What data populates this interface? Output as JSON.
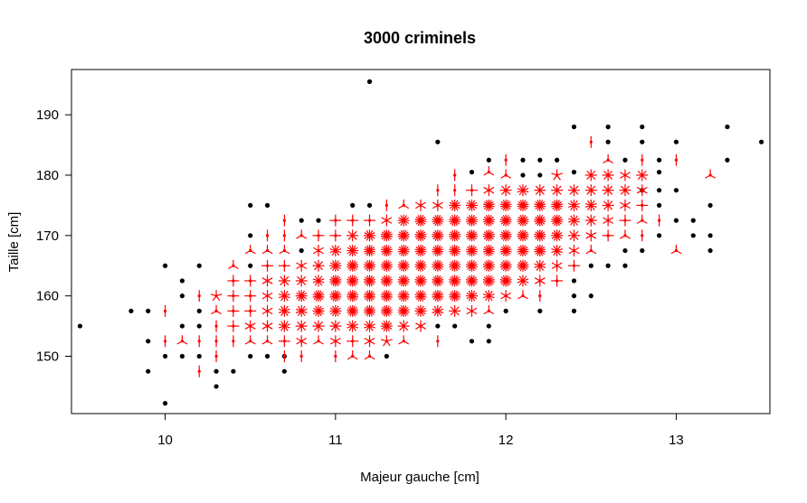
{
  "chart_data": {
    "type": "scatter",
    "title": "3000 criminels",
    "xlabel": "Majeur gauche [cm]",
    "ylabel": "Taille [cm]",
    "xlim": [
      9.45,
      13.55
    ],
    "ylim": [
      140.5,
      197.5
    ],
    "x_ticks": [
      "10",
      "11",
      "12",
      "13"
    ],
    "y_ticks": [
      "150",
      "160",
      "170",
      "180",
      "190"
    ],
    "colors": {
      "single": "#000000",
      "sunflower": "#ff0000",
      "frame": "#000000"
    },
    "legend": "none",
    "grid": false,
    "single_points": [
      [
        9.5,
        155.0
      ],
      [
        9.8,
        157.5
      ],
      [
        9.9,
        157.5
      ],
      [
        9.9,
        152.5
      ],
      [
        9.9,
        147.5
      ],
      [
        10.0,
        165.0
      ],
      [
        10.0,
        150.0
      ],
      [
        10.0,
        142.2
      ],
      [
        10.1,
        162.5
      ],
      [
        10.1,
        160.0
      ],
      [
        10.1,
        155.0
      ],
      [
        10.1,
        150.0
      ],
      [
        10.2,
        165.0
      ],
      [
        10.2,
        157.5
      ],
      [
        10.2,
        155.0
      ],
      [
        10.2,
        150.0
      ],
      [
        10.3,
        147.5
      ],
      [
        10.3,
        145.0
      ],
      [
        10.4,
        147.5
      ],
      [
        10.5,
        175.0
      ],
      [
        10.5,
        170.0
      ],
      [
        10.5,
        165.0
      ],
      [
        10.5,
        150.0
      ],
      [
        10.6,
        175.0
      ],
      [
        10.6,
        150.0
      ],
      [
        10.7,
        150.0
      ],
      [
        10.7,
        147.5
      ],
      [
        10.8,
        172.5
      ],
      [
        10.8,
        167.5
      ],
      [
        10.9,
        172.5
      ],
      [
        11.1,
        175.0
      ],
      [
        11.2,
        175.0
      ],
      [
        11.2,
        195.5
      ],
      [
        11.3,
        150.0
      ],
      [
        11.6,
        185.5
      ],
      [
        11.6,
        155.0
      ],
      [
        11.7,
        155.0
      ],
      [
        11.8,
        180.5
      ],
      [
        11.8,
        152.5
      ],
      [
        11.9,
        182.5
      ],
      [
        11.9,
        155.0
      ],
      [
        11.9,
        152.5
      ],
      [
        12.0,
        157.5
      ],
      [
        12.1,
        180.0
      ],
      [
        12.1,
        182.5
      ],
      [
        12.2,
        182.5
      ],
      [
        12.2,
        180.0
      ],
      [
        12.2,
        157.5
      ],
      [
        12.3,
        182.5
      ],
      [
        12.4,
        188.0
      ],
      [
        12.4,
        180.5
      ],
      [
        12.4,
        162.5
      ],
      [
        12.4,
        160.0
      ],
      [
        12.4,
        157.5
      ],
      [
        12.5,
        165.0
      ],
      [
        12.5,
        160.0
      ],
      [
        12.6,
        188.0
      ],
      [
        12.6,
        185.5
      ],
      [
        12.6,
        165.0
      ],
      [
        12.7,
        182.5
      ],
      [
        12.7,
        167.5
      ],
      [
        12.7,
        165.0
      ],
      [
        12.8,
        188.0
      ],
      [
        12.8,
        185.5
      ],
      [
        12.8,
        177.5
      ],
      [
        12.8,
        167.5
      ],
      [
        12.9,
        182.5
      ],
      [
        12.9,
        180.5
      ],
      [
        12.9,
        177.5
      ],
      [
        12.9,
        175.0
      ],
      [
        12.9,
        170.0
      ],
      [
        13.0,
        185.5
      ],
      [
        13.0,
        177.5
      ],
      [
        13.0,
        172.5
      ],
      [
        13.1,
        172.5
      ],
      [
        13.1,
        170.0
      ],
      [
        13.2,
        175.0
      ],
      [
        13.2,
        170.0
      ],
      [
        13.2,
        167.5
      ],
      [
        13.3,
        188.0
      ],
      [
        13.3,
        182.5
      ],
      [
        13.5,
        185.5
      ]
    ],
    "sunflowers": [
      [
        10.0,
        157.5,
        2
      ],
      [
        10.0,
        152.5,
        2
      ],
      [
        10.1,
        152.5,
        3
      ],
      [
        10.2,
        160.0,
        2
      ],
      [
        10.2,
        152.5,
        2
      ],
      [
        10.2,
        147.5,
        2
      ],
      [
        10.3,
        160.0,
        5
      ],
      [
        10.3,
        157.5,
        3
      ],
      [
        10.3,
        155.0,
        2
      ],
      [
        10.3,
        152.5,
        2
      ],
      [
        10.3,
        150.0,
        2
      ],
      [
        10.4,
        165.0,
        3
      ],
      [
        10.4,
        162.5,
        4
      ],
      [
        10.4,
        160.0,
        4
      ],
      [
        10.4,
        157.5,
        4
      ],
      [
        10.4,
        155.0,
        4
      ],
      [
        10.4,
        152.5,
        2
      ],
      [
        10.5,
        167.5,
        3
      ],
      [
        10.5,
        162.5,
        4
      ],
      [
        10.5,
        160.0,
        4
      ],
      [
        10.5,
        157.5,
        4
      ],
      [
        10.5,
        155.0,
        6
      ],
      [
        10.5,
        152.5,
        3
      ],
      [
        10.6,
        170.0,
        2
      ],
      [
        10.6,
        167.5,
        3
      ],
      [
        10.6,
        165.0,
        4
      ],
      [
        10.6,
        162.5,
        6
      ],
      [
        10.6,
        160.0,
        6
      ],
      [
        10.6,
        157.5,
        6
      ],
      [
        10.6,
        155.0,
        6
      ],
      [
        10.6,
        152.5,
        3
      ],
      [
        10.7,
        172.5,
        2
      ],
      [
        10.7,
        170.0,
        2
      ],
      [
        10.7,
        167.5,
        3
      ],
      [
        10.7,
        165.0,
        4
      ],
      [
        10.7,
        162.5,
        8
      ],
      [
        10.7,
        160.0,
        10
      ],
      [
        10.7,
        157.5,
        10
      ],
      [
        10.7,
        155.0,
        10
      ],
      [
        10.7,
        152.5,
        4
      ],
      [
        10.7,
        150.0,
        2
      ],
      [
        10.8,
        170.0,
        3
      ],
      [
        10.8,
        165.0,
        6
      ],
      [
        10.8,
        162.5,
        8
      ],
      [
        10.8,
        160.0,
        12
      ],
      [
        10.8,
        157.5,
        10
      ],
      [
        10.8,
        155.0,
        8
      ],
      [
        10.8,
        152.5,
        6
      ],
      [
        10.8,
        150.0,
        2
      ],
      [
        10.9,
        170.0,
        4
      ],
      [
        10.9,
        167.5,
        6
      ],
      [
        10.9,
        165.0,
        8
      ],
      [
        10.9,
        162.5,
        10
      ],
      [
        10.9,
        160.0,
        14
      ],
      [
        10.9,
        157.5,
        12
      ],
      [
        10.9,
        155.0,
        8
      ],
      [
        10.9,
        152.5,
        3
      ],
      [
        11.0,
        172.5,
        4
      ],
      [
        11.0,
        170.0,
        4
      ],
      [
        11.0,
        167.5,
        10
      ],
      [
        11.0,
        165.0,
        12
      ],
      [
        11.0,
        162.5,
        14
      ],
      [
        11.0,
        160.0,
        14
      ],
      [
        11.0,
        157.5,
        12
      ],
      [
        11.0,
        155.0,
        8
      ],
      [
        11.0,
        152.5,
        6
      ],
      [
        11.0,
        150.0,
        2
      ],
      [
        11.1,
        172.5,
        4
      ],
      [
        11.1,
        170.0,
        8
      ],
      [
        11.1,
        167.5,
        12
      ],
      [
        11.1,
        165.0,
        14
      ],
      [
        11.1,
        162.5,
        14
      ],
      [
        11.1,
        160.0,
        14
      ],
      [
        11.1,
        157.5,
        14
      ],
      [
        11.1,
        155.0,
        10
      ],
      [
        11.1,
        152.5,
        4
      ],
      [
        11.1,
        150.0,
        3
      ],
      [
        11.2,
        172.5,
        4
      ],
      [
        11.2,
        170.0,
        12
      ],
      [
        11.2,
        167.5,
        14
      ],
      [
        11.2,
        165.0,
        14
      ],
      [
        11.2,
        162.5,
        14
      ],
      [
        11.2,
        160.0,
        14
      ],
      [
        11.2,
        157.5,
        14
      ],
      [
        11.2,
        155.0,
        10
      ],
      [
        11.2,
        152.5,
        6
      ],
      [
        11.2,
        150.0,
        3
      ],
      [
        11.3,
        175.0,
        2
      ],
      [
        11.3,
        172.5,
        6
      ],
      [
        11.3,
        170.0,
        14
      ],
      [
        11.3,
        167.5,
        14
      ],
      [
        11.3,
        165.0,
        14
      ],
      [
        11.3,
        162.5,
        14
      ],
      [
        11.3,
        160.0,
        14
      ],
      [
        11.3,
        157.5,
        14
      ],
      [
        11.3,
        155.0,
        12
      ],
      [
        11.3,
        152.5,
        5
      ],
      [
        11.4,
        175.0,
        3
      ],
      [
        11.4,
        172.5,
        12
      ],
      [
        11.4,
        170.0,
        14
      ],
      [
        11.4,
        167.5,
        14
      ],
      [
        11.4,
        165.0,
        14
      ],
      [
        11.4,
        162.5,
        14
      ],
      [
        11.4,
        160.0,
        14
      ],
      [
        11.4,
        157.5,
        14
      ],
      [
        11.4,
        155.0,
        8
      ],
      [
        11.4,
        152.5,
        3
      ],
      [
        11.5,
        175.0,
        6
      ],
      [
        11.5,
        172.5,
        14
      ],
      [
        11.5,
        170.0,
        14
      ],
      [
        11.5,
        167.5,
        14
      ],
      [
        11.5,
        165.0,
        14
      ],
      [
        11.5,
        162.5,
        14
      ],
      [
        11.5,
        160.0,
        14
      ],
      [
        11.5,
        157.5,
        12
      ],
      [
        11.5,
        155.0,
        6
      ],
      [
        11.6,
        177.5,
        2
      ],
      [
        11.6,
        175.0,
        6
      ],
      [
        11.6,
        172.5,
        14
      ],
      [
        11.6,
        170.0,
        14
      ],
      [
        11.6,
        167.5,
        14
      ],
      [
        11.6,
        165.0,
        14
      ],
      [
        11.6,
        162.5,
        14
      ],
      [
        11.6,
        160.0,
        14
      ],
      [
        11.6,
        157.5,
        10
      ],
      [
        11.6,
        152.5,
        2
      ],
      [
        11.7,
        180.0,
        2
      ],
      [
        11.7,
        177.5,
        2
      ],
      [
        11.7,
        175.0,
        12
      ],
      [
        11.7,
        172.5,
        14
      ],
      [
        11.7,
        170.0,
        14
      ],
      [
        11.7,
        167.5,
        14
      ],
      [
        11.7,
        165.0,
        14
      ],
      [
        11.7,
        162.5,
        14
      ],
      [
        11.7,
        160.0,
        14
      ],
      [
        11.7,
        157.5,
        8
      ],
      [
        11.8,
        177.5,
        4
      ],
      [
        11.8,
        175.0,
        12
      ],
      [
        11.8,
        172.5,
        14
      ],
      [
        11.8,
        170.0,
        14
      ],
      [
        11.8,
        167.5,
        14
      ],
      [
        11.8,
        165.0,
        14
      ],
      [
        11.8,
        162.5,
        14
      ],
      [
        11.8,
        160.0,
        12
      ],
      [
        11.8,
        157.5,
        6
      ],
      [
        11.9,
        180.5,
        3
      ],
      [
        11.9,
        177.5,
        6
      ],
      [
        11.9,
        175.0,
        14
      ],
      [
        11.9,
        172.5,
        14
      ],
      [
        11.9,
        170.0,
        14
      ],
      [
        11.9,
        167.5,
        14
      ],
      [
        11.9,
        165.0,
        14
      ],
      [
        11.9,
        162.5,
        14
      ],
      [
        11.9,
        160.0,
        10
      ],
      [
        11.9,
        157.5,
        3
      ],
      [
        12.0,
        182.5,
        2
      ],
      [
        12.0,
        180.0,
        3
      ],
      [
        12.0,
        177.5,
        8
      ],
      [
        12.0,
        175.0,
        14
      ],
      [
        12.0,
        172.5,
        14
      ],
      [
        12.0,
        170.0,
        14
      ],
      [
        12.0,
        167.5,
        14
      ],
      [
        12.0,
        165.0,
        14
      ],
      [
        12.0,
        162.5,
        14
      ],
      [
        12.0,
        160.0,
        6
      ],
      [
        12.1,
        177.5,
        10
      ],
      [
        12.1,
        175.0,
        14
      ],
      [
        12.1,
        172.5,
        14
      ],
      [
        12.1,
        170.0,
        14
      ],
      [
        12.1,
        167.5,
        14
      ],
      [
        12.1,
        165.0,
        14
      ],
      [
        12.1,
        162.5,
        10
      ],
      [
        12.1,
        160.0,
        3
      ],
      [
        12.2,
        177.5,
        8
      ],
      [
        12.2,
        175.0,
        14
      ],
      [
        12.2,
        172.5,
        14
      ],
      [
        12.2,
        170.0,
        14
      ],
      [
        12.2,
        167.5,
        14
      ],
      [
        12.2,
        165.0,
        10
      ],
      [
        12.2,
        162.5,
        6
      ],
      [
        12.2,
        160.0,
        2
      ],
      [
        12.3,
        180.0,
        5
      ],
      [
        12.3,
        177.5,
        8
      ],
      [
        12.3,
        175.0,
        14
      ],
      [
        12.3,
        172.5,
        14
      ],
      [
        12.3,
        170.0,
        12
      ],
      [
        12.3,
        167.5,
        10
      ],
      [
        12.3,
        165.0,
        6
      ],
      [
        12.3,
        162.5,
        4
      ],
      [
        12.4,
        177.5,
        8
      ],
      [
        12.4,
        175.0,
        10
      ],
      [
        12.4,
        172.5,
        10
      ],
      [
        12.4,
        170.0,
        8
      ],
      [
        12.4,
        167.5,
        6
      ],
      [
        12.4,
        165.0,
        4
      ],
      [
        12.5,
        185.5,
        2
      ],
      [
        12.5,
        180.0,
        8
      ],
      [
        12.5,
        177.5,
        8
      ],
      [
        12.5,
        175.0,
        10
      ],
      [
        12.5,
        172.5,
        8
      ],
      [
        12.5,
        170.0,
        6
      ],
      [
        12.5,
        167.5,
        3
      ],
      [
        12.6,
        182.5,
        3
      ],
      [
        12.6,
        180.0,
        8
      ],
      [
        12.6,
        177.5,
        8
      ],
      [
        12.6,
        175.0,
        8
      ],
      [
        12.6,
        172.5,
        6
      ],
      [
        12.6,
        170.0,
        4
      ],
      [
        12.7,
        180.0,
        6
      ],
      [
        12.7,
        177.5,
        8
      ],
      [
        12.7,
        175.0,
        6
      ],
      [
        12.7,
        172.5,
        4
      ],
      [
        12.7,
        170.0,
        3
      ],
      [
        12.8,
        182.5,
        2
      ],
      [
        12.8,
        180.0,
        8
      ],
      [
        12.8,
        177.5,
        6
      ],
      [
        12.8,
        175.0,
        4
      ],
      [
        12.8,
        172.5,
        3
      ],
      [
        12.8,
        170.0,
        2
      ],
      [
        12.9,
        172.5,
        2
      ],
      [
        13.0,
        182.5,
        2
      ],
      [
        13.0,
        167.5,
        3
      ],
      [
        13.2,
        180.0,
        3
      ]
    ]
  }
}
